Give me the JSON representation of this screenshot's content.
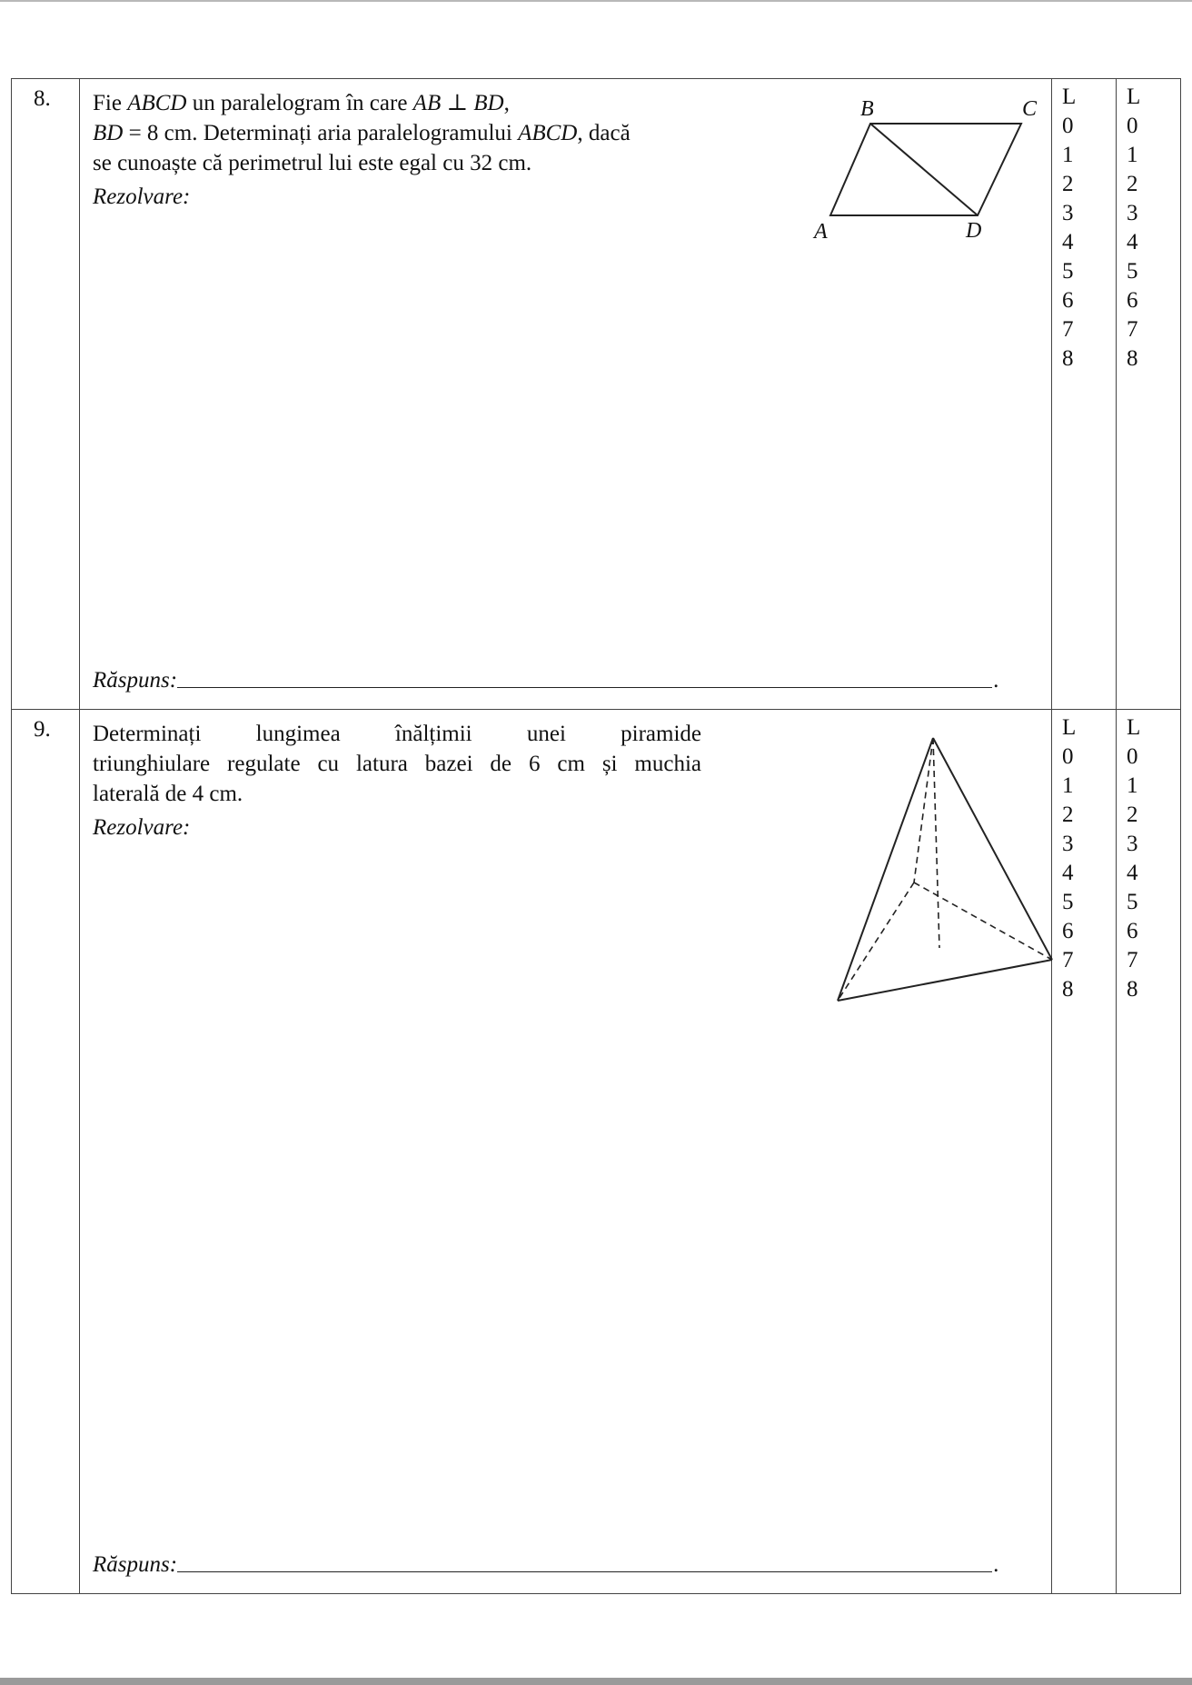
{
  "questions": [
    {
      "number": "8.",
      "lines": [
        [
          "Fie ",
          "ABCD",
          " un paralelogram în care ",
          "AB ⊥ BD",
          ","
        ],
        [
          "BD",
          " = 8 cm. Determinați aria paralelogramului ",
          "ABCD",
          ", dacă"
        ],
        [
          "se cunoaște că perimetrul lui este egal cu 32 cm."
        ]
      ],
      "rezolvare_label": "Rezolvare:",
      "answer_label": "Răspuns:",
      "answer_end": ".",
      "figure_labels": {
        "A": "A",
        "B": "B",
        "C": "C",
        "D": "D"
      },
      "score_col1": [
        "L",
        "0",
        "1",
        "2",
        "3",
        "4",
        "5",
        "6",
        "7",
        "8"
      ],
      "score_col2": [
        "L",
        "0",
        "1",
        "2",
        "3",
        "4",
        "5",
        "6",
        "7",
        "8"
      ]
    },
    {
      "number": "9.",
      "lines": [
        [
          "Determinați lungimea înălțimii unei piramide"
        ],
        [
          "triunghiulare regulate cu latura bazei de 6 cm și muchia"
        ],
        [
          "laterală de 4 cm."
        ]
      ],
      "rezolvare_label": "Rezolvare:",
      "answer_label": "Răspuns:",
      "answer_end": ".",
      "score_col1": [
        "L",
        "0",
        "1",
        "2",
        "3",
        "4",
        "5",
        "6",
        "7",
        "8"
      ],
      "score_col2": [
        "L",
        "0",
        "1",
        "2",
        "3",
        "4",
        "5",
        "6",
        "7",
        "8"
      ]
    }
  ]
}
